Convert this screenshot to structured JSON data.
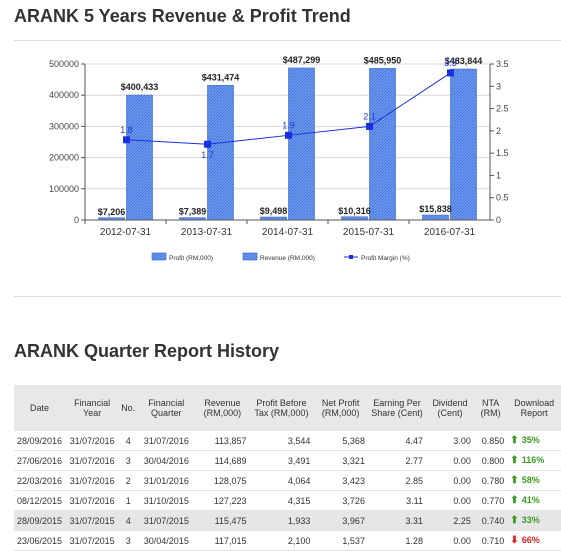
{
  "header": {
    "chart_title": "ARANK 5 Years Revenue & Profit Trend",
    "table_title": "ARANK Quarter Report History"
  },
  "colors": {
    "revenue": "#5b8fe6",
    "profit": "#2f5fcc",
    "margin_line": "#1a2fe0",
    "label_margin": "#2a37d8"
  },
  "chart_data": {
    "type": "bar",
    "categories": [
      "2012-07-31",
      "2013-07-31",
      "2014-07-31",
      "2015-07-31",
      "2016-07-31"
    ],
    "series": [
      {
        "name": "Profit (RM,000)",
        "values": [
          7206,
          7389,
          9498,
          10316,
          15838
        ],
        "labels": [
          "$7,206",
          "$7,389",
          "$9,498",
          "$10,316",
          "$15,838"
        ]
      },
      {
        "name": "Revenue (RM,000)",
        "values": [
          400433,
          431474,
          487299,
          485950,
          483844
        ],
        "labels": [
          "$400,433",
          "$431,474",
          "$487,299",
          "$485,950",
          "$483,844"
        ]
      },
      {
        "name": "Profit Margin (%)",
        "type": "line",
        "axis": "right",
        "values": [
          1.8,
          1.7,
          1.9,
          2.1,
          3.3
        ],
        "labels": [
          "1.8",
          "1.7",
          "1.9",
          "2.1",
          "3.3"
        ]
      }
    ],
    "ylim": [
      0,
      500000
    ],
    "yticks": [
      "0",
      "100000",
      "200000",
      "300000",
      "400000",
      "500000"
    ],
    "y2lim": [
      0,
      3.5
    ],
    "y2ticks": [
      "0",
      "0.5",
      "1",
      "1.5",
      "2",
      "2.5",
      "3",
      "3.5"
    ],
    "legend_position": "bottom"
  },
  "table": {
    "headers": [
      "Date",
      "Financial Year",
      "No.",
      "Financial Quarter",
      "Revenue (RM,000)",
      "Profit Before Tax (RM,000)",
      "Net Profit (RM,000)",
      "Earning Per Share (Cent)",
      "Dividend (Cent)",
      "NTA (RM)",
      "Download Report"
    ],
    "rows": [
      [
        "28/09/2016",
        "31/07/2016",
        "4",
        "31/07/2016",
        "113,857",
        "3,544",
        "5,368",
        "4.47",
        "3.00",
        "0.850",
        "35%",
        "up"
      ],
      [
        "27/06/2016",
        "31/07/2016",
        "3",
        "30/04/2016",
        "114,689",
        "3,491",
        "3,321",
        "2.77",
        "0.00",
        "0.800",
        "116%",
        "up"
      ],
      [
        "22/03/2016",
        "31/07/2016",
        "2",
        "31/01/2016",
        "128,075",
        "4,064",
        "3,423",
        "2.85",
        "0.00",
        "0.780",
        "58%",
        "up"
      ],
      [
        "08/12/2015",
        "31/07/2016",
        "1",
        "31/10/2015",
        "127,223",
        "4,315",
        "3,726",
        "3.11",
        "0.00",
        "0.770",
        "41%",
        "up"
      ],
      [
        "28/09/2015",
        "31/07/2015",
        "4",
        "31/07/2015",
        "115,475",
        "1,933",
        "3,967",
        "3.31",
        "2.25",
        "0.740",
        "33%",
        "up"
      ],
      [
        "23/06/2015",
        "31/07/2015",
        "3",
        "30/04/2015",
        "117,015",
        "2,100",
        "1,537",
        "1.28",
        "0.00",
        "0.710",
        "66%",
        "down"
      ]
    ]
  }
}
